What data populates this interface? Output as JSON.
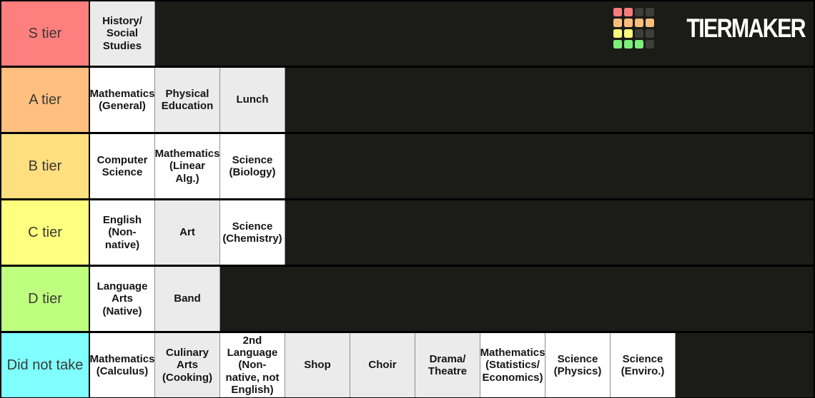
{
  "app": {
    "name": "TierMaker tier list"
  },
  "logo": {
    "text": "TIERMAKER",
    "grid_colors": [
      "#f97c7c",
      "#f97c7c",
      "#3d3d39",
      "#3d3d39",
      "#fbbd7c",
      "#fbbd7c",
      "#fbbd7c",
      "#fbbd7c",
      "#fbfb7d",
      "#fbfb7d",
      "#3d3d39",
      "#3d3d39",
      "#7cef7c",
      "#7cef7c",
      "#7cef7c",
      "#3d3d39"
    ]
  },
  "colors": {
    "row_background": "#1b1b17",
    "separator": "#000000",
    "tile_white": "#ffffff",
    "tile_gray": "#ebebeb"
  },
  "tiers": [
    {
      "label": "S tier",
      "color": "#ff7f7f",
      "items": [
        {
          "label": "History/\nSocial\nStudies",
          "bg": "#ebebeb"
        }
      ]
    },
    {
      "label": "A tier",
      "color": "#ffbf7f",
      "items": [
        {
          "label": "Mathematics\n(General)",
          "bg": "#ffffff"
        },
        {
          "label": "Physical\nEducation",
          "bg": "#ebebeb"
        },
        {
          "label": "Lunch",
          "bg": "#ebebeb"
        }
      ]
    },
    {
      "label": "B tier",
      "color": "#ffdf7f",
      "items": [
        {
          "label": "Computer\nScience",
          "bg": "#ffffff"
        },
        {
          "label": "Mathematics\n(Linear\nAlg.)",
          "bg": "#ffffff"
        },
        {
          "label": "Science\n(Biology)",
          "bg": "#ffffff"
        }
      ]
    },
    {
      "label": "C tier",
      "color": "#ffff7f",
      "items": [
        {
          "label": "English\n(Non-\nnative)",
          "bg": "#ffffff"
        },
        {
          "label": "Art",
          "bg": "#ebebeb"
        },
        {
          "label": "Science\n(Chemistry)",
          "bg": "#ffffff"
        }
      ]
    },
    {
      "label": "D tier",
      "color": "#bfff7f",
      "items": [
        {
          "label": "Language\nArts\n(Native)",
          "bg": "#ffffff"
        },
        {
          "label": "Band",
          "bg": "#ebebeb"
        }
      ]
    },
    {
      "label": "Did not take",
      "color": "#7fffff",
      "items": [
        {
          "label": "Mathematics\n(Calculus)",
          "bg": "#ffffff"
        },
        {
          "label": "Culinary\nArts\n(Cooking)",
          "bg": "#ebebeb"
        },
        {
          "label": "2nd\nLanguage\n(Non-\nnative, not\nEnglish)",
          "bg": "#ffffff"
        },
        {
          "label": "Shop",
          "bg": "#ebebeb"
        },
        {
          "label": "Choir",
          "bg": "#ebebeb"
        },
        {
          "label": "Drama/\nTheatre",
          "bg": "#ebebeb"
        },
        {
          "label": "Mathematics\n(Statistics/\nEconomics)",
          "bg": "#ffffff"
        },
        {
          "label": "Science\n(Physics)",
          "bg": "#ffffff"
        },
        {
          "label": "Science\n(Enviro.)",
          "bg": "#ffffff"
        }
      ]
    }
  ]
}
